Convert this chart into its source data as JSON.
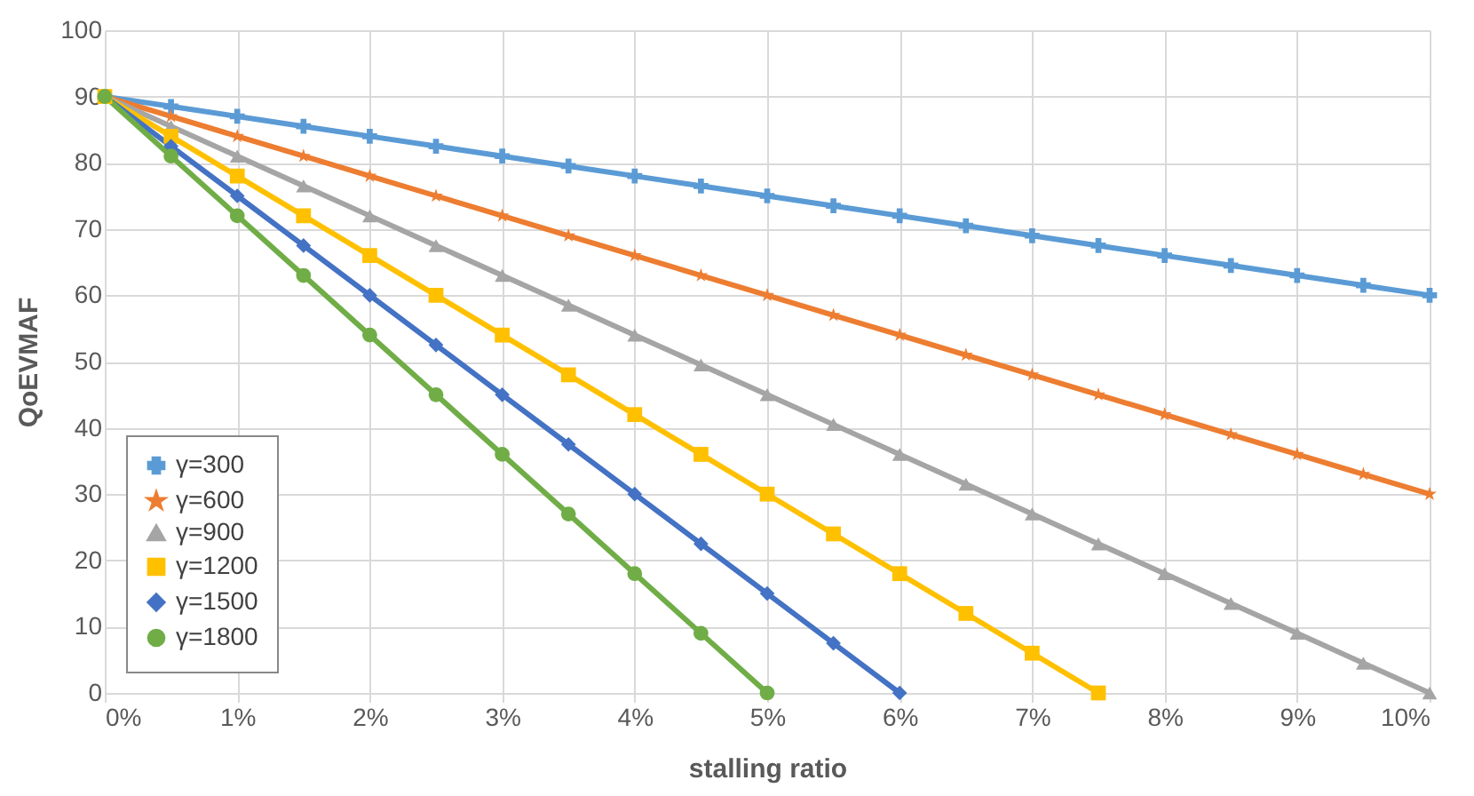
{
  "chart_data": {
    "type": "line",
    "xlabel": "stalling ratio",
    "ylabel": "QoEVMAF",
    "xlim": [
      0,
      10
    ],
    "xticks": [
      {
        "value": 0,
        "label": "0%"
      },
      {
        "value": 1,
        "label": "1%"
      },
      {
        "value": 2,
        "label": "2%"
      },
      {
        "value": 3,
        "label": "3%"
      },
      {
        "value": 4,
        "label": "4%"
      },
      {
        "value": 5,
        "label": "5%"
      },
      {
        "value": 6,
        "label": "6%"
      },
      {
        "value": 7,
        "label": "7%"
      },
      {
        "value": 8,
        "label": "8%"
      },
      {
        "value": 9,
        "label": "9%"
      },
      {
        "value": 10,
        "label": "10%"
      }
    ],
    "ylim": [
      0,
      100
    ],
    "yticks": [
      0,
      10,
      20,
      30,
      40,
      50,
      60,
      70,
      80,
      90,
      100
    ],
    "grid": true,
    "legend": "bottom left",
    "series": [
      {
        "name": "γ=300",
        "color": "#5b9bd5",
        "marker": "cross",
        "x": [
          0,
          0.5,
          1,
          1.5,
          2,
          2.5,
          3,
          3.5,
          4,
          4.5,
          5,
          5.5,
          6,
          6.5,
          7,
          7.5,
          8,
          8.5,
          9,
          9.5,
          10
        ],
        "values": [
          90,
          88.5,
          87,
          85.5,
          84,
          82.5,
          81,
          79.5,
          78,
          76.5,
          75,
          73.5,
          72,
          70.5,
          69,
          67.5,
          66,
          64.5,
          63,
          61.5,
          60
        ]
      },
      {
        "name": "γ=600",
        "color": "#ed7d31",
        "marker": "star",
        "x": [
          0,
          0.5,
          1,
          1.5,
          2,
          2.5,
          3,
          3.5,
          4,
          4.5,
          5,
          5.5,
          6,
          6.5,
          7,
          7.5,
          8,
          8.5,
          9,
          9.5,
          10
        ],
        "values": [
          90,
          87,
          84,
          81,
          78,
          75,
          72,
          69,
          66,
          63,
          60,
          57,
          54,
          51,
          48,
          45,
          42,
          39,
          36,
          33,
          30
        ]
      },
      {
        "name": "γ=900",
        "color": "#a5a5a5",
        "marker": "triangle",
        "x": [
          0,
          0.5,
          1,
          1.5,
          2,
          2.5,
          3,
          3.5,
          4,
          4.5,
          5,
          5.5,
          6,
          6.5,
          7,
          7.5,
          8,
          8.5,
          9,
          9.5,
          10
        ],
        "values": [
          90,
          85.5,
          81,
          76.5,
          72,
          67.5,
          63,
          58.5,
          54,
          49.5,
          45,
          40.5,
          36,
          31.5,
          27,
          22.5,
          18,
          13.5,
          9,
          4.5,
          0
        ]
      },
      {
        "name": "γ=1200",
        "color": "#ffc000",
        "marker": "square",
        "x": [
          0,
          0.5,
          1,
          1.5,
          2,
          2.5,
          3,
          3.5,
          4,
          4.5,
          5,
          5.5,
          6,
          6.5,
          7,
          7.5
        ],
        "values": [
          90,
          84,
          78,
          72,
          66,
          60,
          54,
          48,
          42,
          36,
          30,
          24,
          18,
          12,
          6,
          0
        ]
      },
      {
        "name": "γ=1500",
        "color": "#4472c4",
        "marker": "diamond",
        "x": [
          0,
          0.5,
          1,
          1.5,
          2,
          2.5,
          3,
          3.5,
          4,
          4.5,
          5,
          5.5,
          6
        ],
        "values": [
          90,
          82.5,
          75,
          67.5,
          60,
          52.5,
          45,
          37.5,
          30,
          22.5,
          15,
          7.5,
          0
        ]
      },
      {
        "name": "γ=1800",
        "color": "#70ad47",
        "marker": "circle",
        "x": [
          0,
          0.5,
          1,
          1.5,
          2,
          2.5,
          3,
          3.5,
          4,
          4.5,
          5
        ],
        "values": [
          90,
          81,
          72,
          63,
          54,
          45,
          36,
          27,
          18,
          9,
          0
        ]
      }
    ]
  }
}
